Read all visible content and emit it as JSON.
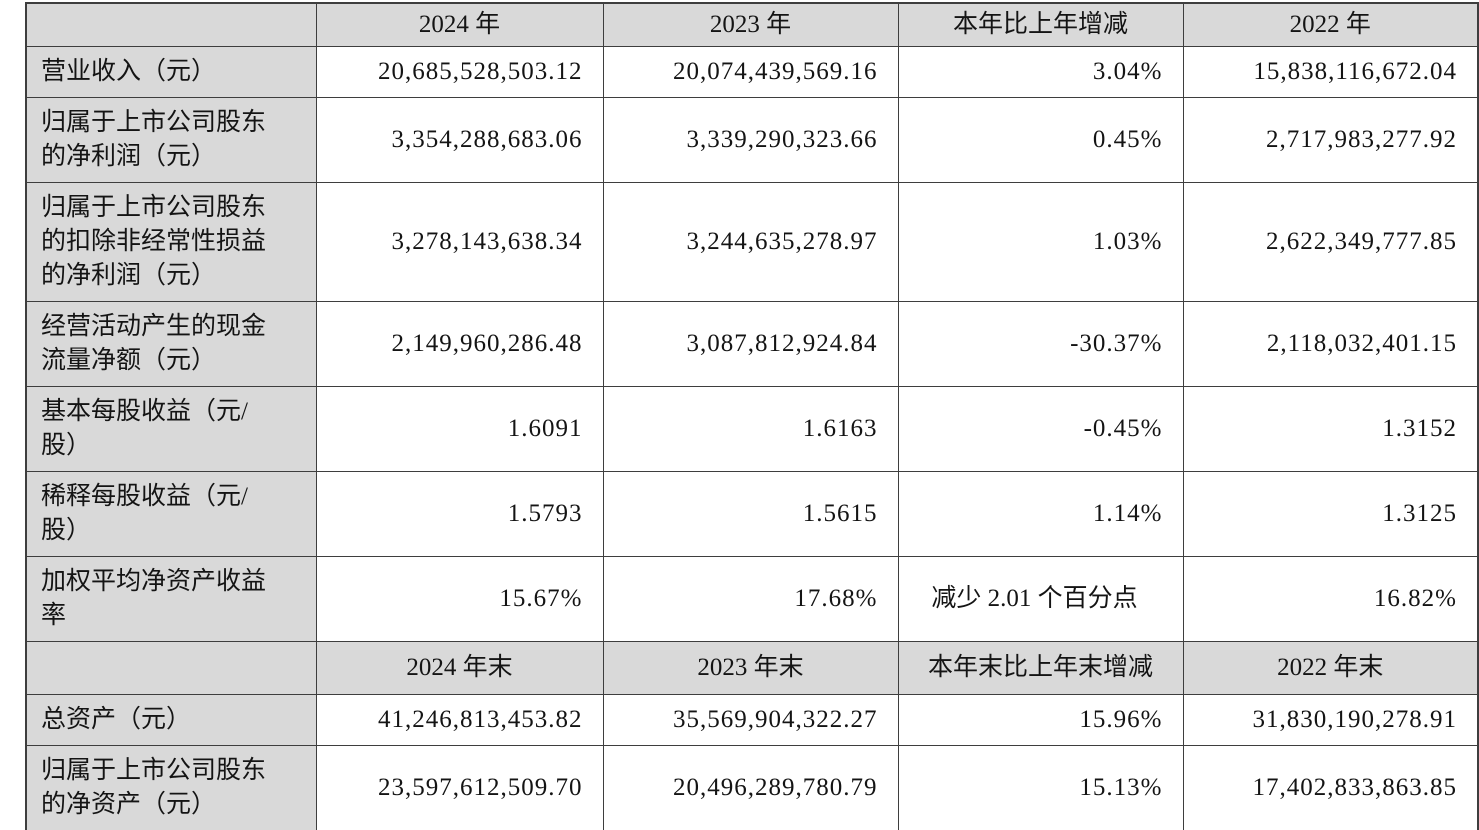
{
  "page": {
    "background_color": "#ffffff",
    "text_color": "#141414",
    "border_color": "#3e3e3e"
  },
  "table": {
    "header_bg": "#d9d9d9",
    "sections": [
      {
        "corner": "",
        "columns": [
          "2024 年",
          "2023 年",
          "本年比上年增减",
          "2022 年"
        ],
        "rows": [
          {
            "label": "营业收入（元）",
            "cells": [
              "20,685,528,503.12",
              "20,074,439,569.16",
              "3.04%",
              "15,838,116,672.04"
            ]
          },
          {
            "label": "归属于上市公司股东\n的净利润（元）",
            "cells": [
              "3,354,288,683.06",
              "3,339,290,323.66",
              "0.45%",
              "2,717,983,277.92"
            ]
          },
          {
            "label": "归属于上市公司股东\n的扣除非经常性损益\n的净利润（元）",
            "cells": [
              "3,278,143,638.34",
              "3,244,635,278.97",
              "1.03%",
              "2,622,349,777.85"
            ]
          },
          {
            "label": "经营活动产生的现金\n流量净额（元）",
            "cells": [
              "2,149,960,286.48",
              "3,087,812,924.84",
              "-30.37%",
              "2,118,032,401.15"
            ]
          },
          {
            "label": "基本每股收益（元/\n股）",
            "cells": [
              "1.6091",
              "1.6163",
              "-0.45%",
              "1.3152"
            ]
          },
          {
            "label": "稀释每股收益（元/\n股）",
            "cells": [
              "1.5793",
              "1.5615",
              "1.14%",
              "1.3125"
            ]
          },
          {
            "label": "加权平均净资产收益\n率",
            "cells": [
              "15.67%",
              "17.68%",
              {
                "text": "减少 2.01 个百分点",
                "align": "center"
              },
              "16.82%"
            ]
          }
        ]
      },
      {
        "corner": "",
        "columns": [
          "2024 年末",
          "2023 年末",
          "本年末比上年末增减",
          "2022 年末"
        ],
        "rows": [
          {
            "label": "总资产（元）",
            "cells": [
              "41,246,813,453.82",
              "35,569,904,322.27",
              "15.96%",
              "31,830,190,278.91"
            ]
          },
          {
            "label": "归属于上市公司股东\n的净资产（元）",
            "cells": [
              "23,597,612,509.70",
              "20,496,289,780.79",
              "15.13%",
              "17,402,833,863.85"
            ]
          }
        ]
      }
    ]
  }
}
